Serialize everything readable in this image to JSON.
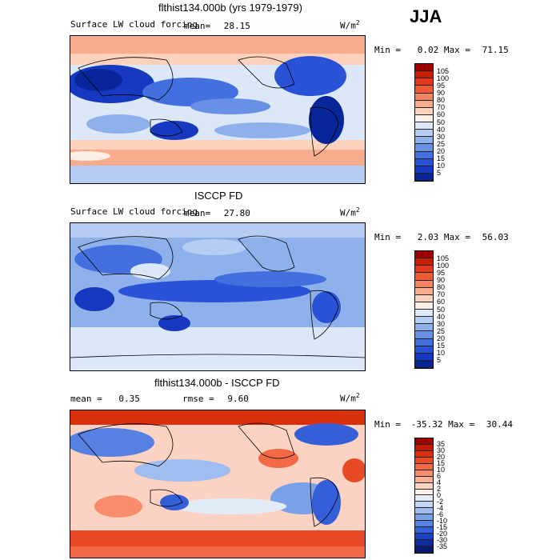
{
  "season": "JJA",
  "chart_data": [
    {
      "type": "heatmap",
      "title": "flthist134.000b (yrs 1979-1979)",
      "field": "Surface LW cloud forcing",
      "mean_label": "mean=",
      "mean_value": "28.15",
      "units": "W/m",
      "units_exp": "2",
      "min_label": "Min =",
      "min_value": "0.02",
      "max_label": "Max =",
      "max_value": "71.15",
      "colorbar_levels": [
        "105",
        "100",
        "95",
        "90",
        "80",
        "70",
        "60",
        "50",
        "40",
        "30",
        "25",
        "20",
        "15",
        "10",
        "5"
      ],
      "colorbar_colors": [
        "#9e0000",
        "#c81e00",
        "#e03a1e",
        "#ee5a36",
        "#f5855f",
        "#f9ab8d",
        "#fcd2bd",
        "#fcefe6",
        "#dce8f8",
        "#b6cdf3",
        "#8eb1ec",
        "#6891e5",
        "#4370de",
        "#2a52d6",
        "#1738c0",
        "#08259a"
      ]
    },
    {
      "type": "heatmap",
      "title": "ISCCP FD",
      "field": "Surface LW cloud forcing",
      "mean_label": "mean=",
      "mean_value": "27.80",
      "units": "W/m",
      "units_exp": "2",
      "min_label": "Min =",
      "min_value": "2.03",
      "max_label": "Max =",
      "max_value": "56.03",
      "colorbar_levels": [
        "105",
        "100",
        "95",
        "90",
        "80",
        "70",
        "60",
        "50",
        "40",
        "30",
        "25",
        "20",
        "15",
        "10",
        "5"
      ],
      "colorbar_colors": [
        "#9e0000",
        "#c81e00",
        "#e03a1e",
        "#ee5a36",
        "#f5855f",
        "#f9ab8d",
        "#fcd2bd",
        "#fcefe6",
        "#dce8f8",
        "#b6cdf3",
        "#8eb1ec",
        "#6891e5",
        "#4370de",
        "#2a52d6",
        "#1738c0",
        "#08259a"
      ]
    },
    {
      "type": "heatmap",
      "title": "flthist134.000b - ISCCP FD",
      "mean_label": "mean =",
      "mean_value": "0.35",
      "rmse_label": "rmse =",
      "rmse_value": "9.60",
      "units": "W/m",
      "units_exp": "2",
      "min_label": "Min =",
      "min_value": "-35.32",
      "max_label": "Max =",
      "max_value": "30.44",
      "colorbar_levels": [
        "35",
        "30",
        "20",
        "15",
        "10",
        "6",
        "4",
        "2",
        "0",
        "-2",
        "-4",
        "-6",
        "-10",
        "-15",
        "-20",
        "-30",
        "-35"
      ],
      "colorbar_colors": [
        "#9e0000",
        "#c01a00",
        "#d8300a",
        "#e84a26",
        "#f26a45",
        "#f78d6c",
        "#fab196",
        "#fcd3c3",
        "#fcefe8",
        "#e2ecf9",
        "#c2d6f4",
        "#9fbdee",
        "#7aa0e8",
        "#5680e1",
        "#345fd8",
        "#1c40c4",
        "#0d2aa0",
        "#061a78"
      ]
    }
  ]
}
